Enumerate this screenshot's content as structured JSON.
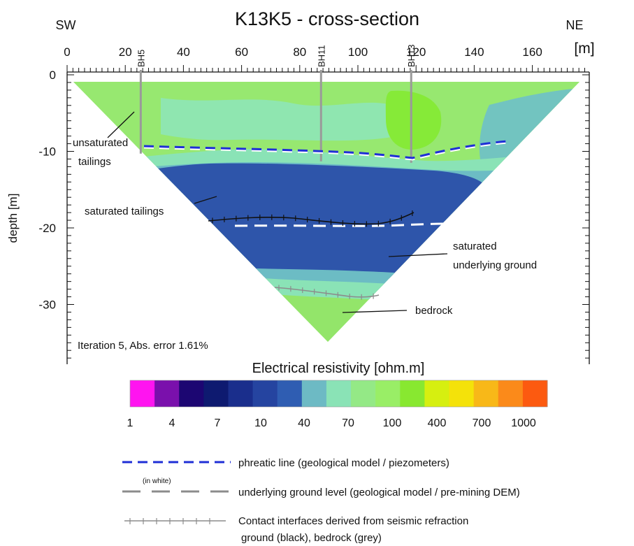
{
  "title": "K13K5 - cross-section",
  "corner_left": "SW",
  "corner_right": "NE",
  "x_axis": {
    "unit": "[m]",
    "ticks": [
      0,
      20,
      40,
      60,
      80,
      100,
      120,
      140,
      160
    ],
    "tick_labels": [
      "0",
      "20",
      "40",
      "60",
      "80",
      "100",
      "120",
      "140",
      "160"
    ]
  },
  "y_axis": {
    "label": "depth [m]",
    "ticks": [
      0,
      -10,
      -20,
      -30
    ],
    "tick_labels": [
      "0",
      "-10",
      "-20",
      "-30"
    ]
  },
  "boreholes": [
    {
      "name": "BH5",
      "x": 21
    },
    {
      "name": "BH11",
      "x": 83
    },
    {
      "name": "BH13",
      "x": 114
    }
  ],
  "annotations": {
    "unsat_line1": "unsaturated",
    "unsat_line2": "tailings",
    "sat_tailings": "saturated tailings",
    "sat_ground_line1": "saturated",
    "sat_ground_line2": "underlying ground",
    "bedrock": "bedrock"
  },
  "iteration_text": "Iteration 5, Abs. error 1.61%",
  "colorbar": {
    "title": "Electrical resistivity [ohm.m]",
    "colors": [
      "#ff14f0",
      "#7a10ac",
      "#1c0672",
      "#0e1a70",
      "#1a2e8c",
      "#2544a0",
      "#2f5db2",
      "#6dbac4",
      "#8ae3b6",
      "#94e986",
      "#99ee66",
      "#88e830",
      "#d6ef10",
      "#f4e20a",
      "#f8b818",
      "#fb8a1a",
      "#fc5a10"
    ],
    "tick_labels": [
      "1",
      "4",
      "7",
      "10",
      "40",
      "70",
      "100",
      "400",
      "700",
      "1000"
    ]
  },
  "legend": {
    "phreatic": "phreatic line (geological model / piezometers)",
    "ground_level": "underlying ground level (geological model / pre-mining DEM)",
    "in_white": "(in white)",
    "seismic_line1": "Contact interfaces derived from seismic refraction",
    "seismic_line2": "ground (black), bedrock (grey)"
  },
  "colors": {
    "blue_dash": "#1f2fd6",
    "grey_line": "#8c8c8c",
    "unsat": "#97e870",
    "transition": "#6cbcc4",
    "saturated": "#2e55aa",
    "bedrock": "#93e56a"
  }
}
